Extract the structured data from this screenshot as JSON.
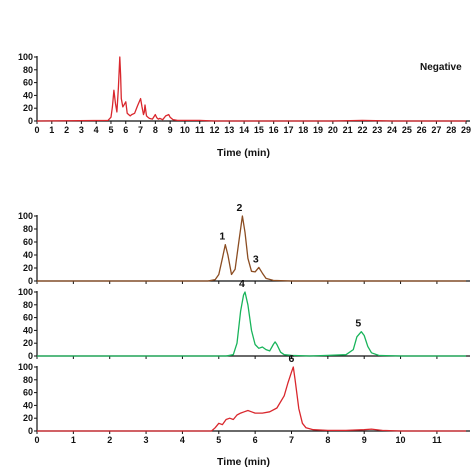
{
  "chart_data": [
    {
      "type": "line",
      "annotation": "Negative",
      "xlabel": "Time (min)",
      "ylabel": "",
      "xlim": [
        0,
        29
      ],
      "ylim": [
        0,
        100
      ],
      "xticks": [
        "0",
        "1",
        "2",
        "3",
        "4",
        "5",
        "6",
        "7",
        "8",
        "9",
        "10",
        "11",
        "12",
        "13",
        "14",
        "15",
        "16",
        "17",
        "18",
        "19",
        "20",
        "21",
        "22",
        "23",
        "24",
        "25",
        "26",
        "27",
        "28",
        "29"
      ],
      "yticks": [
        "0",
        "20",
        "40",
        "60",
        "80",
        "100"
      ],
      "series": [
        {
          "color": "#d9272d",
          "x": [
            0,
            4.8,
            5.0,
            5.1,
            5.2,
            5.3,
            5.4,
            5.5,
            5.6,
            5.65,
            5.7,
            5.8,
            5.9,
            6.0,
            6.1,
            6.2,
            6.3,
            6.4,
            6.6,
            6.8,
            7.0,
            7.1,
            7.2,
            7.25,
            7.3,
            7.4,
            7.5,
            7.6,
            7.8,
            8.0,
            8.1,
            8.2,
            8.3,
            8.5,
            8.7,
            8.9,
            9.0,
            9.2,
            9.5,
            10.0,
            11.0,
            12.0,
            15.0,
            20.0,
            22.0,
            24.0,
            29.0
          ],
          "y": [
            0,
            1,
            6,
            22,
            48,
            28,
            14,
            52,
            100,
            72,
            35,
            22,
            26,
            30,
            12,
            10,
            8,
            10,
            12,
            24,
            35,
            22,
            10,
            14,
            25,
            8,
            6,
            4,
            3,
            10,
            5,
            3,
            4,
            2,
            8,
            10,
            6,
            2,
            1,
            1,
            1,
            0,
            0,
            0,
            1,
            0,
            0
          ]
        }
      ]
    },
    {
      "type": "line",
      "xlabel": "",
      "ylabel": "",
      "xlim": [
        0,
        11.8
      ],
      "ylim": [
        0,
        100
      ],
      "yticks": [
        "0",
        "20",
        "40",
        "60",
        "80",
        "100"
      ],
      "labels": [
        {
          "text": "1",
          "x": 5.18,
          "y": 56
        },
        {
          "text": "2",
          "x": 5.65,
          "y": 100
        },
        {
          "text": "3",
          "x": 6.1,
          "y": 21
        }
      ],
      "series": [
        {
          "color": "#8b4d22",
          "x": [
            0,
            4.7,
            4.9,
            5.0,
            5.1,
            5.18,
            5.25,
            5.35,
            5.45,
            5.55,
            5.65,
            5.72,
            5.8,
            5.9,
            6.0,
            6.1,
            6.2,
            6.3,
            6.5,
            7.0,
            8.0,
            11.8
          ],
          "y": [
            0,
            0,
            2,
            10,
            35,
            56,
            40,
            10,
            18,
            60,
            100,
            75,
            35,
            15,
            14,
            21,
            12,
            4,
            1,
            0,
            0,
            0
          ]
        }
      ]
    },
    {
      "type": "line",
      "xlabel": "",
      "ylabel": "",
      "xlim": [
        0,
        11.8
      ],
      "ylim": [
        0,
        100
      ],
      "yticks": [
        "0",
        "20",
        "40",
        "60",
        "80",
        "100"
      ],
      "labels": [
        {
          "text": "4",
          "x": 5.72,
          "y": 100
        },
        {
          "text": "5",
          "x": 8.92,
          "y": 38
        }
      ],
      "series": [
        {
          "color": "#18b45a",
          "x": [
            0,
            5.2,
            5.4,
            5.5,
            5.6,
            5.68,
            5.72,
            5.8,
            5.9,
            6.0,
            6.1,
            6.2,
            6.3,
            6.4,
            6.5,
            6.55,
            6.6,
            6.7,
            6.8,
            7.0,
            7.5,
            8.0,
            8.5,
            8.7,
            8.8,
            8.92,
            9.0,
            9.1,
            9.2,
            9.4,
            10.0,
            11.8
          ],
          "y": [
            0,
            0,
            2,
            20,
            70,
            95,
            100,
            80,
            40,
            18,
            12,
            14,
            10,
            8,
            18,
            22,
            18,
            6,
            2,
            1,
            0,
            1,
            2,
            10,
            30,
            38,
            32,
            15,
            5,
            1,
            0,
            0
          ]
        }
      ]
    },
    {
      "type": "line",
      "xlabel": "Time (min)",
      "ylabel": "",
      "xlim": [
        0,
        11.8
      ],
      "ylim": [
        0,
        100
      ],
      "xticks": [
        "0",
        "1",
        "2",
        "3",
        "4",
        "5",
        "6",
        "7",
        "8",
        "9",
        "10",
        "11"
      ],
      "yticks": [
        "0",
        "20",
        "40",
        "60",
        "80",
        "100"
      ],
      "labels": [
        {
          "text": "6",
          "x": 7.08,
          "y": 100
        }
      ],
      "series": [
        {
          "color": "#d9272d",
          "x": [
            0,
            4.8,
            4.9,
            5.0,
            5.1,
            5.2,
            5.3,
            5.4,
            5.5,
            5.6,
            5.7,
            5.8,
            5.9,
            6.0,
            6.2,
            6.4,
            6.6,
            6.8,
            6.9,
            7.0,
            7.05,
            7.1,
            7.2,
            7.3,
            7.4,
            7.6,
            8.0,
            8.5,
            9.0,
            9.2,
            9.5,
            10.0,
            11.8
          ],
          "y": [
            0,
            0,
            5,
            12,
            10,
            18,
            20,
            18,
            25,
            28,
            30,
            32,
            30,
            28,
            28,
            30,
            36,
            55,
            75,
            92,
            100,
            80,
            35,
            12,
            5,
            2,
            1,
            1,
            2,
            3,
            1,
            0,
            0
          ]
        }
      ]
    }
  ]
}
